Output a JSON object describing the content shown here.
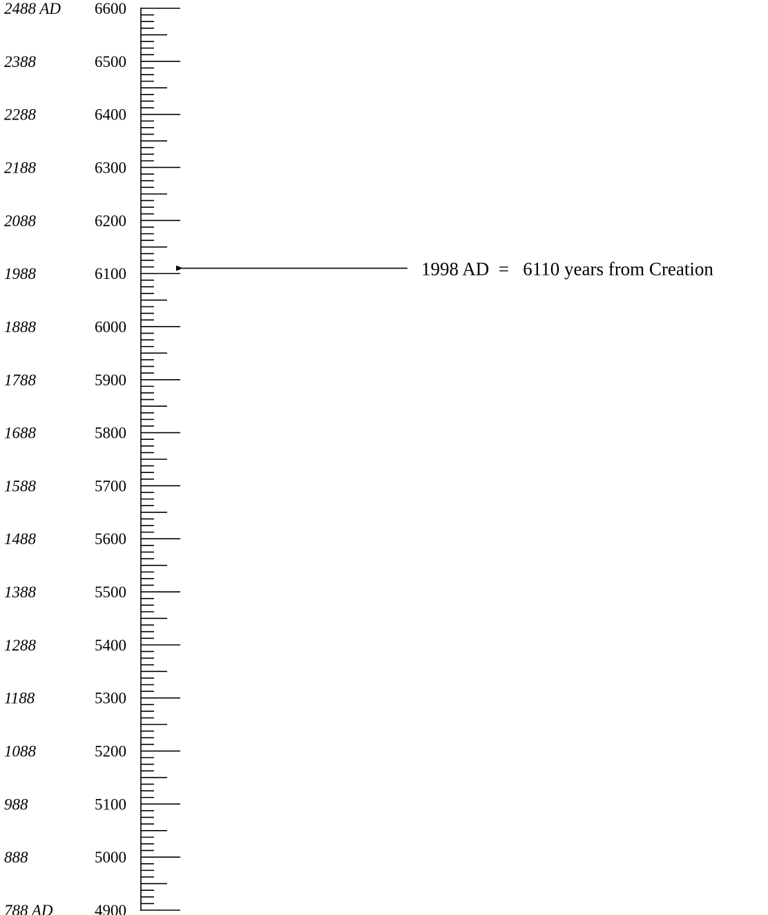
{
  "chart_data": {
    "type": "timeline-scale",
    "scale": {
      "unit": "years from Creation",
      "min": 4900,
      "max": 6600,
      "major_step": 100,
      "minor_step": 25,
      "sub_minor_step": 12.5
    },
    "rows": [
      {
        "ad": "2488 AD",
        "creation": "6600",
        "value": 6600
      },
      {
        "ad": "2388",
        "creation": "6500",
        "value": 6500
      },
      {
        "ad": "2288",
        "creation": "6400",
        "value": 6400
      },
      {
        "ad": "2188",
        "creation": "6300",
        "value": 6300
      },
      {
        "ad": "2088",
        "creation": "6200",
        "value": 6200
      },
      {
        "ad": "1988",
        "creation": "6100",
        "value": 6100
      },
      {
        "ad": "1888",
        "creation": "6000",
        "value": 6000
      },
      {
        "ad": "1788",
        "creation": "5900",
        "value": 5900
      },
      {
        "ad": "1688",
        "creation": "5800",
        "value": 5800
      },
      {
        "ad": "1588",
        "creation": "5700",
        "value": 5700
      },
      {
        "ad": "1488",
        "creation": "5600",
        "value": 5600
      },
      {
        "ad": "1388",
        "creation": "5500",
        "value": 5500
      },
      {
        "ad": "1288",
        "creation": "5400",
        "value": 5400
      },
      {
        "ad": "1188",
        "creation": "5300",
        "value": 5300
      },
      {
        "ad": "1088",
        "creation": "5200",
        "value": 5200
      },
      {
        "ad": "988",
        "creation": "5100",
        "value": 5100
      },
      {
        "ad": "888",
        "creation": "5000",
        "value": 5000
      },
      {
        "ad": "788 AD",
        "creation": "4900",
        "value": 4900
      }
    ],
    "annotation": {
      "text": "1998 AD  =   6110 years from Creation",
      "value": 6110
    }
  }
}
